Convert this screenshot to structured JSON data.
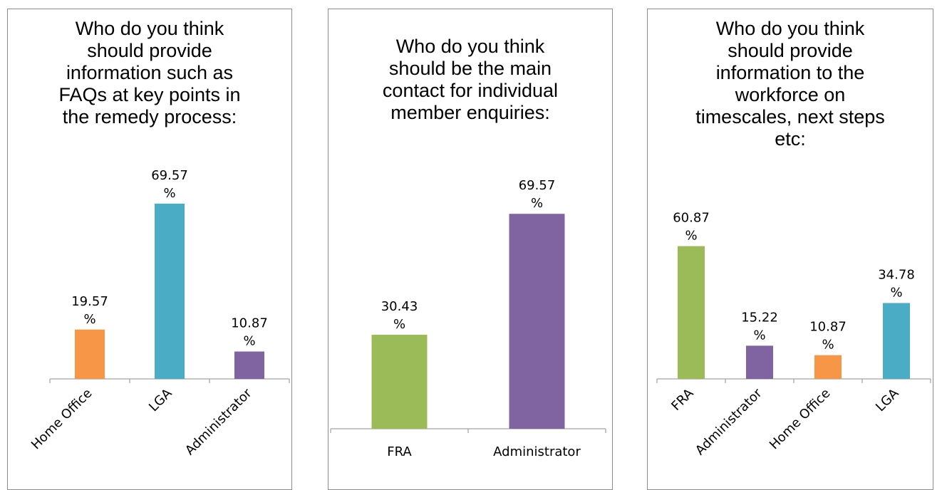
{
  "chart_data": [
    {
      "type": "bar",
      "title": "Who do you think should provide information such as FAQs at key points in the remedy process:",
      "title_lines": [
        "Who do you think",
        "should provide",
        "information such as",
        "FAQs at key points in",
        "the remedy process:"
      ],
      "categories": [
        "Home Office",
        "LGA",
        "Administrator"
      ],
      "values": [
        19.57,
        69.57,
        10.87
      ],
      "value_labels": [
        [
          "19.57",
          "%"
        ],
        [
          "69.57",
          "%"
        ],
        [
          "10.87",
          "%"
        ]
      ],
      "colors": [
        "#f79646",
        "#4bacc6",
        "#8064a2"
      ],
      "ylim": [
        0,
        80
      ],
      "category_label_rotation": "diagonal"
    },
    {
      "type": "bar",
      "title": "Who do you think should be the main contact for individual member enquiries:",
      "title_lines": [
        "Who do you think",
        "should be the main",
        "contact for individual",
        "member enquiries:"
      ],
      "categories": [
        "FRA",
        "Administrator"
      ],
      "values": [
        30.43,
        69.57
      ],
      "value_labels": [
        [
          "30.43",
          "%"
        ],
        [
          "69.57",
          "%"
        ]
      ],
      "colors": [
        "#9bbb59",
        "#8064a2"
      ],
      "ylim": [
        0,
        80
      ],
      "category_label_rotation": "horizontal"
    },
    {
      "type": "bar",
      "title": "Who do you think should provide information to the workforce on timescales, next steps etc:",
      "title_lines": [
        "Who do you think",
        "should provide",
        "information to the",
        "workforce on",
        "timescales, next steps",
        "etc:"
      ],
      "categories": [
        "FRA",
        "Administrator",
        "Home Office",
        "LGA"
      ],
      "values": [
        60.87,
        15.22,
        10.87,
        34.78
      ],
      "value_labels": [
        [
          "60.87",
          "%"
        ],
        [
          "15.22",
          "%"
        ],
        [
          "10.87",
          "%"
        ],
        [
          "34.78",
          "%"
        ]
      ],
      "colors": [
        "#9bbb59",
        "#8064a2",
        "#f79646",
        "#4bacc6"
      ],
      "ylim": [
        0,
        80
      ],
      "category_label_rotation": "diagonal"
    }
  ]
}
